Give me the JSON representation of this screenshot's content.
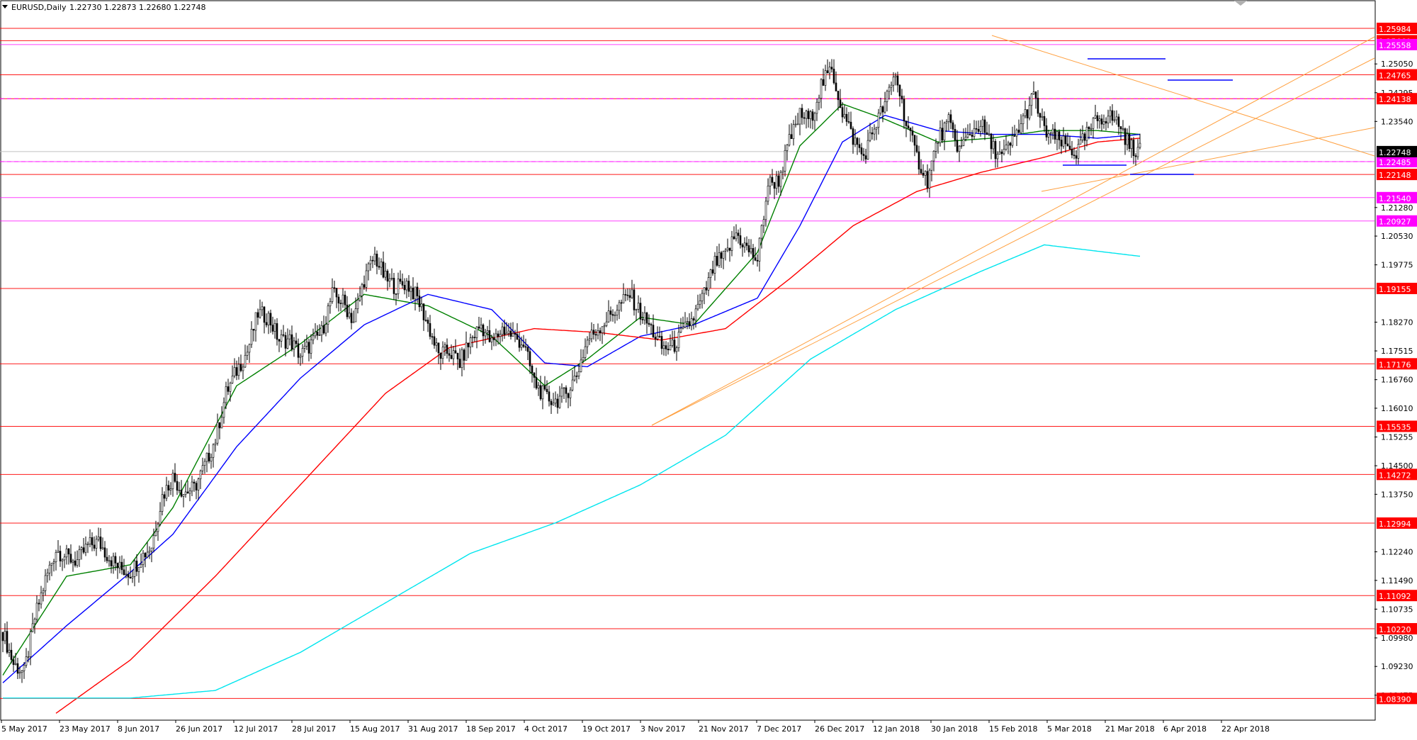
{
  "header": {
    "symbol": "EURUSD,Daily",
    "ohlc": "1.22730 1.22873 1.22680 1.22748"
  },
  "chart_data": {
    "type": "candlestick",
    "symbol": "EURUSD",
    "timeframe": "Daily",
    "ylim": [
      1.0782,
      1.2671
    ],
    "y_ticks": [
      "1.25050",
      "1.24295",
      "1.23540",
      "1.21280",
      "1.20530",
      "1.19775",
      "1.18270",
      "1.17515",
      "1.16760",
      "1.16010",
      "1.15255",
      "1.14500",
      "1.13750",
      "1.12240",
      "1.11490",
      "1.10735",
      "1.09980",
      "1.09230",
      "1.08475"
    ],
    "x_labels": [
      "5 May 2017",
      "23 May 2017",
      "8 Jun 2017",
      "26 Jun 2017",
      "12 Jul 2017",
      "28 Jul 2017",
      "15 Aug 2017",
      "31 Aug 2017",
      "18 Sep 2017",
      "4 Oct 2017",
      "19 Oct 2017",
      "3 Nov 2017",
      "21 Nov 2017",
      "7 Dec 2017",
      "26 Dec 2017",
      "12 Jan 2018",
      "30 Jan 2018",
      "15 Feb 2018",
      "5 Mar 2018",
      "21 Mar 2018",
      "6 Apr 2018",
      "22 Apr 2018"
    ],
    "current_price": "1.22748",
    "price_levels": [
      {
        "label": "1.25984",
        "value": 1.25984,
        "color": "#ff0000"
      },
      {
        "label": "1.25660",
        "value": 1.2566,
        "color": "#ff0000"
      },
      {
        "label": "1.25558",
        "value": 1.25558,
        "color": "#ff00ff"
      },
      {
        "label": "1.24765",
        "value": 1.24765,
        "color": "#ff0000"
      },
      {
        "label": "1.24138",
        "value": 1.24138,
        "color": "#ff0000"
      },
      {
        "label": "1.22485",
        "value": 1.22485,
        "color": "#ff00ff"
      },
      {
        "label": "1.22148",
        "value": 1.22148,
        "color": "#ff0000"
      },
      {
        "label": "1.21540",
        "value": 1.2154,
        "color": "#ff00ff"
      },
      {
        "label": "1.20927",
        "value": 1.20927,
        "color": "#ff00ff"
      },
      {
        "label": "1.19155",
        "value": 1.19155,
        "color": "#ff0000"
      },
      {
        "label": "1.17176",
        "value": 1.17176,
        "color": "#ff0000"
      },
      {
        "label": "1.15535",
        "value": 1.15535,
        "color": "#ff0000"
      },
      {
        "label": "1.14272",
        "value": 1.14272,
        "color": "#ff0000"
      },
      {
        "label": "1.12994",
        "value": 1.12994,
        "color": "#ff0000"
      },
      {
        "label": "1.11092",
        "value": 1.11092,
        "color": "#ff0000"
      },
      {
        "label": "1.10220",
        "value": 1.1022,
        "color": "#ff0000"
      },
      {
        "label": "1.08390",
        "value": 1.0839,
        "color": "#ff0000"
      }
    ],
    "price_path": [
      [
        0,
        1.1013
      ],
      [
        5,
        1.093
      ],
      [
        10,
        1.0905
      ],
      [
        15,
        1.105
      ],
      [
        20,
        1.115
      ],
      [
        25,
        1.123
      ],
      [
        30,
        1.121
      ],
      [
        35,
        1.12
      ],
      [
        40,
        1.124
      ],
      [
        45,
        1.125
      ],
      [
        50,
        1.121
      ],
      [
        55,
        1.118
      ],
      [
        60,
        1.117
      ],
      [
        65,
        1.121
      ],
      [
        70,
        1.124
      ],
      [
        75,
        1.137
      ],
      [
        80,
        1.142
      ],
      [
        85,
        1.138
      ],
      [
        90,
        1.139
      ],
      [
        95,
        1.145
      ],
      [
        100,
        1.152
      ],
      [
        105,
        1.164
      ],
      [
        110,
        1.17
      ],
      [
        115,
        1.175
      ],
      [
        120,
        1.185
      ],
      [
        125,
        1.184
      ],
      [
        130,
        1.178
      ],
      [
        135,
        1.178
      ],
      [
        140,
        1.174
      ],
      [
        145,
        1.177
      ],
      [
        150,
        1.18
      ],
      [
        155,
        1.19
      ],
      [
        160,
        1.188
      ],
      [
        165,
        1.183
      ],
      [
        170,
        1.194
      ],
      [
        175,
        1.2
      ],
      [
        180,
        1.194
      ],
      [
        185,
        1.192
      ],
      [
        190,
        1.193
      ],
      [
        195,
        1.189
      ],
      [
        200,
        1.182
      ],
      [
        205,
        1.174
      ],
      [
        210,
        1.175
      ],
      [
        215,
        1.172
      ],
      [
        220,
        1.178
      ],
      [
        225,
        1.182
      ],
      [
        230,
        1.177
      ],
      [
        235,
        1.181
      ],
      [
        240,
        1.179
      ],
      [
        245,
        1.177
      ],
      [
        250,
        1.167
      ],
      [
        255,
        1.163
      ],
      [
        260,
        1.162
      ],
      [
        265,
        1.164
      ],
      [
        270,
        1.169
      ],
      [
        275,
        1.178
      ],
      [
        280,
        1.181
      ],
      [
        285,
        1.184
      ],
      [
        290,
        1.187
      ],
      [
        295,
        1.19
      ],
      [
        300,
        1.185
      ],
      [
        305,
        1.181
      ],
      [
        310,
        1.176
      ],
      [
        315,
        1.176
      ],
      [
        320,
        1.18
      ],
      [
        325,
        1.184
      ],
      [
        330,
        1.19
      ],
      [
        335,
        1.198
      ],
      [
        340,
        1.2
      ],
      [
        345,
        1.206
      ],
      [
        350,
        1.202
      ],
      [
        355,
        1.199
      ],
      [
        360,
        1.219
      ],
      [
        365,
        1.22
      ],
      [
        370,
        1.23
      ],
      [
        375,
        1.237
      ],
      [
        380,
        1.236
      ],
      [
        385,
        1.245
      ],
      [
        390,
        1.249
      ],
      [
        395,
        1.238
      ],
      [
        400,
        1.231
      ],
      [
        405,
        1.226
      ],
      [
        410,
        1.234
      ],
      [
        415,
        1.24
      ],
      [
        420,
        1.248
      ],
      [
        425,
        1.235
      ],
      [
        430,
        1.226
      ],
      [
        435,
        1.22
      ],
      [
        440,
        1.231
      ],
      [
        445,
        1.235
      ],
      [
        450,
        1.228
      ],
      [
        455,
        1.232
      ],
      [
        460,
        1.235
      ],
      [
        465,
        1.229
      ],
      [
        470,
        1.226
      ],
      [
        475,
        1.23
      ],
      [
        480,
        1.236
      ],
      [
        485,
        1.242
      ],
      [
        490,
        1.233
      ],
      [
        495,
        1.231
      ],
      [
        500,
        1.229
      ],
      [
        505,
        1.227
      ],
      [
        510,
        1.232
      ],
      [
        515,
        1.236
      ],
      [
        520,
        1.237
      ],
      [
        525,
        1.235
      ],
      [
        530,
        1.229
      ],
      [
        535,
        1.2275
      ]
    ],
    "series": [
      {
        "color": "#008000",
        "points": [
          [
            0,
            1.09
          ],
          [
            30,
            1.116
          ],
          [
            60,
            1.119
          ],
          [
            80,
            1.134
          ],
          [
            110,
            1.166
          ],
          [
            140,
            1.177
          ],
          [
            170,
            1.19
          ],
          [
            200,
            1.187
          ],
          [
            230,
            1.179
          ],
          [
            255,
            1.166
          ],
          [
            275,
            1.173
          ],
          [
            300,
            1.184
          ],
          [
            325,
            1.182
          ],
          [
            355,
            1.201
          ],
          [
            375,
            1.229
          ],
          [
            395,
            1.24
          ],
          [
            415,
            1.236
          ],
          [
            440,
            1.23
          ],
          [
            465,
            1.231
          ],
          [
            490,
            1.233
          ],
          [
            515,
            1.233
          ],
          [
            535,
            1.232
          ]
        ]
      },
      {
        "color": "#0000ff",
        "points": [
          [
            0,
            1.088
          ],
          [
            30,
            1.103
          ],
          [
            60,
            1.117
          ],
          [
            80,
            1.127
          ],
          [
            110,
            1.15
          ],
          [
            140,
            1.168
          ],
          [
            170,
            1.182
          ],
          [
            200,
            1.19
          ],
          [
            230,
            1.186
          ],
          [
            255,
            1.172
          ],
          [
            275,
            1.171
          ],
          [
            300,
            1.179
          ],
          [
            325,
            1.182
          ],
          [
            355,
            1.189
          ],
          [
            375,
            1.208
          ],
          [
            395,
            1.23
          ],
          [
            415,
            1.237
          ],
          [
            440,
            1.233
          ],
          [
            465,
            1.232
          ],
          [
            490,
            1.232
          ],
          [
            515,
            1.231
          ],
          [
            535,
            1.232
          ]
        ]
      },
      {
        "color": "#ff0000",
        "points": [
          [
            25,
            1.08
          ],
          [
            60,
            1.094
          ],
          [
            100,
            1.116
          ],
          [
            140,
            1.14
          ],
          [
            180,
            1.164
          ],
          [
            210,
            1.176
          ],
          [
            250,
            1.181
          ],
          [
            280,
            1.18
          ],
          [
            310,
            1.178
          ],
          [
            340,
            1.181
          ],
          [
            370,
            1.194
          ],
          [
            400,
            1.208
          ],
          [
            430,
            1.217
          ],
          [
            460,
            1.222
          ],
          [
            490,
            1.226
          ],
          [
            515,
            1.23
          ],
          [
            535,
            1.231
          ]
        ]
      },
      {
        "color": "#00e5ee",
        "points": [
          [
            0,
            1.084
          ],
          [
            60,
            1.084
          ],
          [
            100,
            1.086
          ],
          [
            140,
            1.096
          ],
          [
            180,
            1.109
          ],
          [
            220,
            1.122
          ],
          [
            260,
            1.13
          ],
          [
            300,
            1.14
          ],
          [
            340,
            1.153
          ],
          [
            380,
            1.173
          ],
          [
            420,
            1.186
          ],
          [
            460,
            1.196
          ],
          [
            490,
            1.203
          ],
          [
            535,
            1.2
          ]
        ]
      }
    ]
  }
}
